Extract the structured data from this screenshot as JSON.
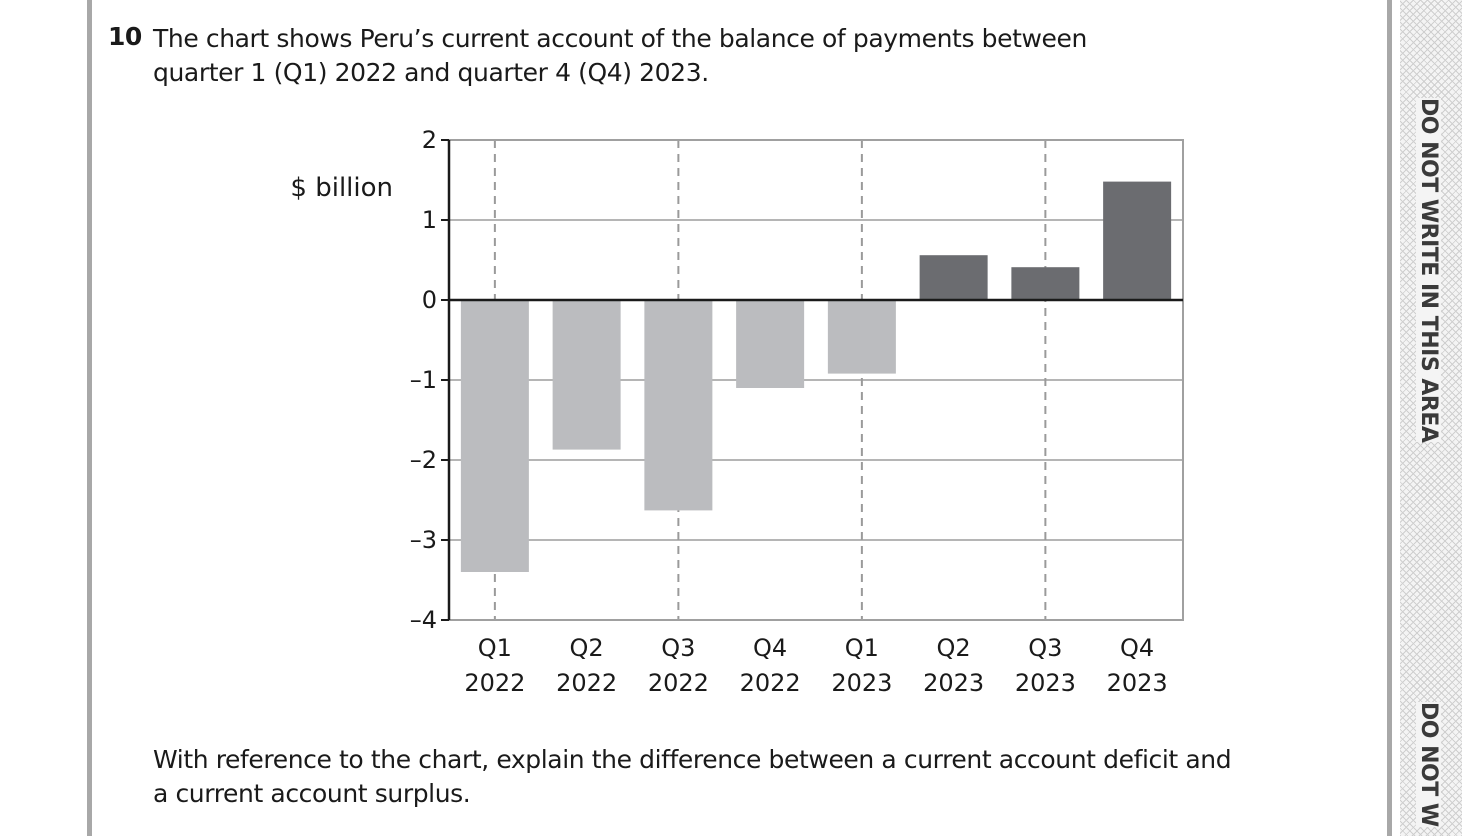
{
  "question": {
    "number": "10",
    "text": "The chart shows Peru’s current account of the balance of payments between quarter 1 (Q1) 2022 and quarter 4 (Q4) 2023.",
    "footer": "With reference to the chart, explain the difference between a current account deficit and a current account surplus."
  },
  "margin_notes": [
    "DO NOT WRITE IN THIS AREA",
    "DO NOT W"
  ],
  "chart_data": {
    "type": "bar",
    "title": "",
    "xlabel": "",
    "ylabel": "$ billion",
    "ylim": [
      -4,
      2
    ],
    "yticks": [
      2,
      1,
      0,
      -1,
      -2,
      -3,
      -4
    ],
    "ytick_labels": [
      "2",
      "1",
      "0",
      "–1",
      "–2",
      "–3",
      "–4"
    ],
    "grid": true,
    "categories": [
      {
        "quarter": "Q1",
        "year": "2022"
      },
      {
        "quarter": "Q2",
        "year": "2022"
      },
      {
        "quarter": "Q3",
        "year": "2022"
      },
      {
        "quarter": "Q4",
        "year": "2022"
      },
      {
        "quarter": "Q1",
        "year": "2023"
      },
      {
        "quarter": "Q2",
        "year": "2023"
      },
      {
        "quarter": "Q3",
        "year": "2023"
      },
      {
        "quarter": "Q4",
        "year": "2023"
      }
    ],
    "values": [
      -3.4,
      -1.87,
      -2.63,
      -1.1,
      -0.92,
      0.56,
      0.41,
      1.48
    ],
    "colors": {
      "negative": "#bbbcbf",
      "positive": "#6b6c70"
    }
  }
}
